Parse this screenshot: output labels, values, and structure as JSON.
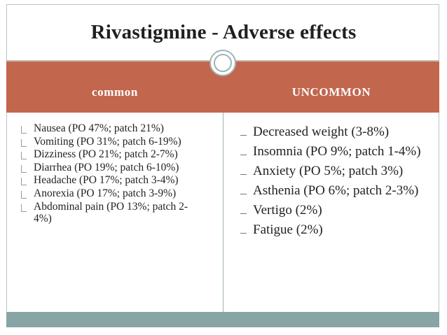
{
  "title": "Rivastigmine - Adverse effects",
  "columns": {
    "left_header": "common",
    "right_header": "UNCOMMON"
  },
  "common": [
    "Nausea (PO 47%; patch 21%)",
    "Vomiting (PO 31%; patch 6-19%)",
    "Dizziness (PO 21%; patch 2-7%)",
    "Diarrhea (PO 19%; patch 6-10%)",
    "Headache (PO 17%; patch 3-4%)",
    "Anorexia (PO 17%; patch 3-9%)",
    "Abdominal pain (PO 13%; patch 2-4%)"
  ],
  "uncommon": [
    "Decreased weight (3-8%)",
    "Insomnia (PO 9%; patch 1-4%)",
    "Anxiety (PO 5%; patch 3%)",
    "Asthenia (PO 6%; patch 2-3%)",
    "Vertigo (2%)",
    "Fatigue (2%)"
  ],
  "colors": {
    "header_band": "#c3664e",
    "footer_band": "#88a5a6",
    "ring": "#9fb3b5"
  }
}
